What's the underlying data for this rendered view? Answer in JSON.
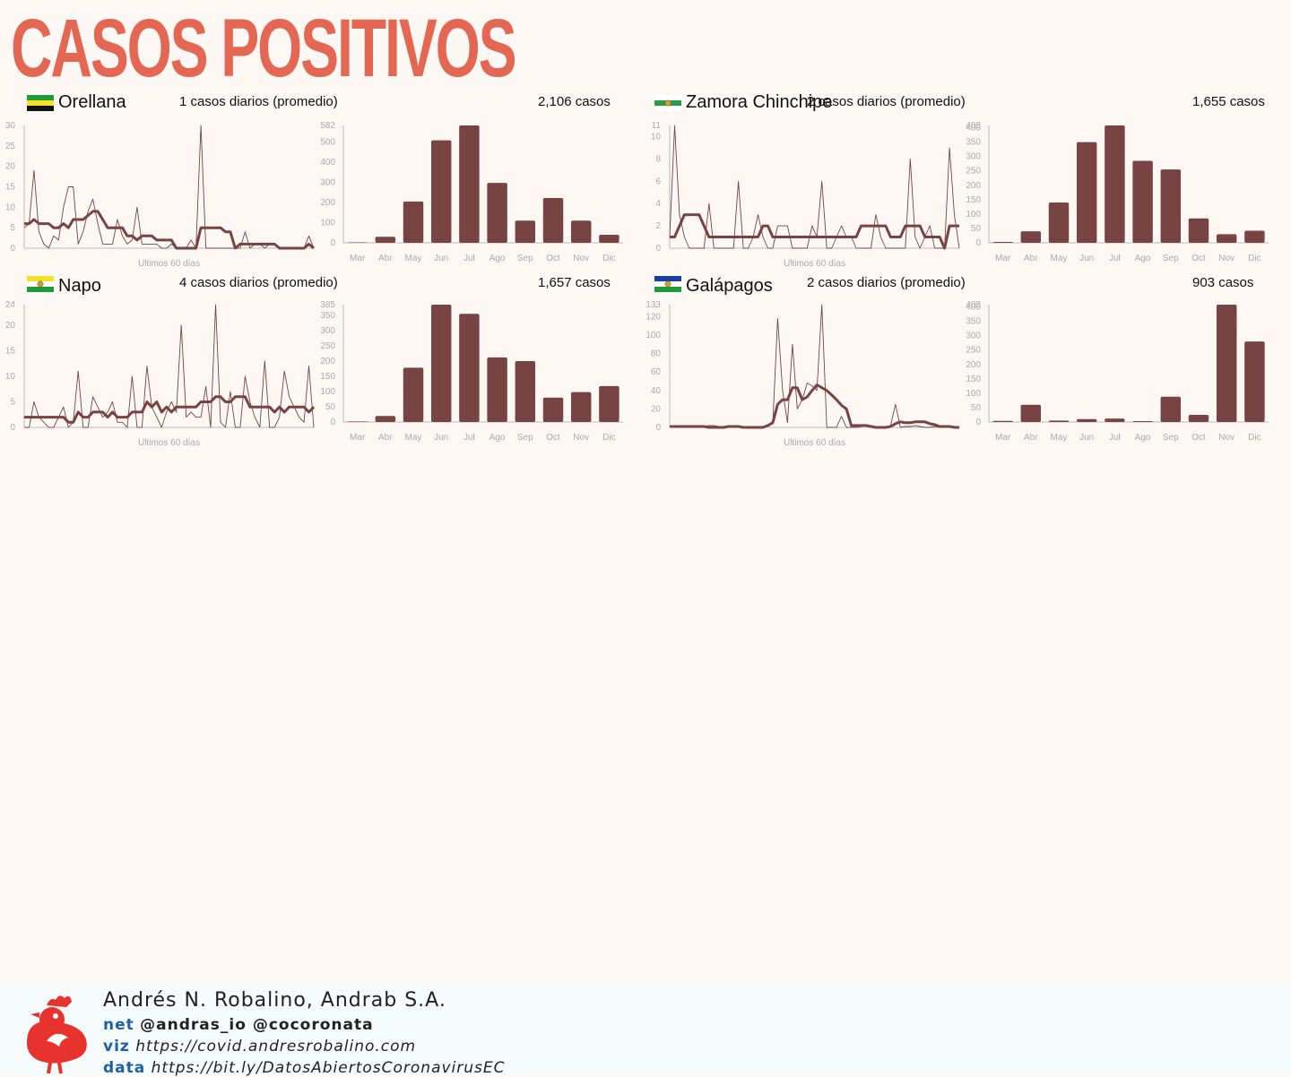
{
  "title": "CASOS POSITIVOS",
  "line_xlabel": "Ultimos 60 días",
  "colors": {
    "bar": "#774443",
    "line": "#774443",
    "title": "#e36752",
    "axis": "#bbbbbb"
  },
  "panels": [
    {
      "name": "Orellana",
      "avg_text": "1 casos diarios (promedio)",
      "total_text": "2,106 casos",
      "flag": {
        "type": "stripes",
        "colors": [
          "#1f9b3a",
          "#f5e12a",
          "#111111"
        ]
      },
      "line_chart": {
        "type": "line",
        "xlabel": "Ultimos 60 días",
        "ylim": [
          0,
          30
        ],
        "yticks": [
          0,
          5,
          10,
          15,
          20,
          25,
          30
        ],
        "series": [
          {
            "values": [
              5,
              6,
              19,
              4,
              1,
              0,
              3,
              2,
              10,
              15,
              15,
              1,
              4,
              9,
              12,
              6,
              1,
              1,
              1,
              7,
              3,
              1,
              2,
              10,
              1,
              1,
              1,
              1,
              0,
              0,
              1,
              0,
              0,
              0,
              2,
              0,
              30,
              0,
              0,
              0,
              0,
              0,
              0,
              0,
              0,
              4,
              0,
              1,
              1,
              0,
              1,
              1,
              0,
              0,
              0,
              0,
              0,
              0,
              3,
              0
            ]
          },
          {
            "values": [
              6,
              6,
              7,
              6,
              6,
              6,
              5,
              5,
              6,
              5,
              7,
              7,
              7,
              8,
              9,
              9,
              7,
              5,
              5,
              5,
              5,
              3,
              3,
              2,
              3,
              3,
              3,
              2,
              2,
              2,
              2,
              0,
              0,
              0,
              0,
              0,
              5,
              5,
              5,
              5,
              5,
              4,
              4,
              0,
              1,
              1,
              1,
              1,
              1,
              1,
              1,
              1,
              0,
              0,
              0,
              0,
              0,
              0,
              1,
              0
            ]
          }
        ]
      },
      "bar_chart": {
        "type": "bar",
        "categories": [
          "Mar",
          "Abr",
          "May",
          "Jun",
          "Jul",
          "Ago",
          "Sep",
          "Oct",
          "Nov",
          "Dic"
        ],
        "values": [
          2,
          30,
          205,
          508,
          582,
          297,
          110,
          222,
          110,
          40
        ],
        "ylim": [
          0,
          582
        ],
        "yticks": [
          0,
          100,
          200,
          300,
          400,
          500,
          582
        ]
      }
    },
    {
      "name": "Zamora Chinchipe",
      "avg_text": "2 casos diarios (promedio)",
      "total_text": "1,655 casos",
      "flag": {
        "type": "stripes-seal",
        "colors": [
          "#ffffff",
          "#2e9a48",
          "#ffffff"
        ]
      },
      "line_chart": {
        "type": "line",
        "xlabel": "Ultimos 60 días",
        "ylim": [
          0,
          11
        ],
        "yticks": [
          0,
          2,
          4,
          6,
          8,
          10,
          11
        ],
        "series": [
          {
            "values": [
              1,
              11,
              3,
              1,
              0,
              0,
              0,
              0,
              4,
              0,
              0,
              0,
              0,
              0,
              6,
              0,
              0,
              1,
              3,
              1,
              0,
              0,
              2,
              2,
              2,
              0,
              0,
              0,
              0,
              2,
              1,
              6,
              0,
              0,
              1,
              2,
              1,
              1,
              0,
              0,
              0,
              0,
              3,
              1,
              0,
              0,
              0,
              0,
              0,
              8,
              1,
              0,
              1,
              2,
              0,
              0,
              0,
              9,
              3,
              0
            ]
          },
          {
            "values": [
              1,
              1,
              2,
              3,
              3,
              3,
              3,
              2,
              1,
              1,
              1,
              1,
              1,
              1,
              1,
              1,
              1,
              1,
              1,
              2,
              2,
              1,
              1,
              1,
              1,
              1,
              1,
              1,
              1,
              1,
              1,
              1,
              1,
              1,
              1,
              1,
              1,
              1,
              1,
              2,
              2,
              2,
              2,
              2,
              2,
              1,
              1,
              1,
              2,
              2,
              2,
              2,
              1,
              1,
              1,
              1,
              0,
              2,
              2,
              2
            ]
          }
        ]
      },
      "bar_chart": {
        "type": "bar",
        "categories": [
          "Mar",
          "Abr",
          "May",
          "Jun",
          "Jul",
          "Ago",
          "Sep",
          "Oct",
          "Nov",
          "Dic"
        ],
        "values": [
          3,
          40,
          140,
          350,
          408,
          285,
          255,
          85,
          30,
          42
        ],
        "ylim": [
          0,
          408
        ],
        "yticks": [
          0,
          50,
          100,
          150,
          200,
          250,
          300,
          350,
          400,
          408
        ]
      }
    },
    {
      "name": "Napo",
      "avg_text": "4 casos diarios (promedio)",
      "total_text": "1,657 casos",
      "flag": {
        "type": "stripes-seal",
        "colors": [
          "#f5e12a",
          "#ffffff",
          "#1f9b3a"
        ]
      },
      "line_chart": {
        "type": "line",
        "xlabel": "Ultimos 60 días",
        "ylim": [
          0,
          24
        ],
        "yticks": [
          0,
          5,
          10,
          15,
          20,
          24
        ],
        "series": [
          {
            "values": [
              0,
              0,
              5,
              2,
              1,
              0,
              0,
              2,
              4,
              0,
              1,
              11,
              0,
              0,
              6,
              4,
              2,
              3,
              5,
              1,
              1,
              0,
              10,
              0,
              0,
              12,
              4,
              2,
              0,
              3,
              5,
              3,
              20,
              2,
              3,
              2,
              2,
              8,
              0,
              24,
              1,
              0,
              7,
              0,
              0,
              10,
              5,
              2,
              0,
              13,
              0,
              0,
              2,
              11,
              6,
              4,
              2,
              1,
              12,
              0
            ]
          },
          {
            "values": [
              2,
              2,
              2,
              2,
              2,
              2,
              2,
              2,
              2,
              1,
              1,
              3,
              2,
              2,
              3,
              3,
              3,
              2,
              3,
              2,
              2,
              2,
              3,
              3,
              3,
              5,
              4,
              5,
              3,
              4,
              3,
              4,
              4,
              4,
              4,
              4,
              5,
              5,
              5,
              6,
              6,
              5,
              5,
              6,
              6,
              6,
              4,
              4,
              4,
              4,
              4,
              3,
              4,
              3,
              4,
              4,
              4,
              4,
              3,
              4
            ]
          }
        ]
      },
      "bar_chart": {
        "type": "bar",
        "categories": [
          "Mar",
          "Abr",
          "May",
          "Jun",
          "Jul",
          "Ago",
          "Sep",
          "Oct",
          "Nov",
          "Dic"
        ],
        "values": [
          2,
          20,
          178,
          385,
          355,
          212,
          200,
          80,
          98,
          118
        ],
        "ylim": [
          0,
          385
        ],
        "yticks": [
          0,
          50,
          100,
          150,
          200,
          250,
          300,
          350,
          385
        ]
      }
    },
    {
      "name": "Galápagos",
      "avg_text": "2 casos diarios (promedio)",
      "total_text": "903 casos",
      "flag": {
        "type": "stripes-seal",
        "colors": [
          "#1b3fa0",
          "#ffffff",
          "#1f9b3a"
        ]
      },
      "line_chart": {
        "type": "line",
        "xlabel": "Ultimos 60 días",
        "ylim": [
          0,
          133
        ],
        "yticks": [
          0,
          20,
          40,
          60,
          80,
          100,
          120,
          133
        ],
        "series": [
          {
            "values": [
              1,
              1,
              1,
              1,
              1,
              1,
              1,
              1,
              2,
              2,
              1,
              1,
              1,
              1,
              1,
              1,
              1,
              1,
              1,
              1,
              1,
              5,
              118,
              40,
              5,
              90,
              20,
              30,
              48,
              45,
              40,
              133,
              0,
              0,
              0,
              12,
              0,
              0,
              0,
              1,
              2,
              0,
              1,
              0,
              0,
              2,
              25,
              0,
              1,
              1,
              2,
              1,
              0,
              0,
              1,
              0,
              0,
              0,
              1,
              1
            ]
          },
          {
            "values": [
              1,
              1,
              1,
              1,
              1,
              1,
              1,
              1,
              0,
              0,
              0,
              0,
              1,
              1,
              1,
              0,
              0,
              0,
              0,
              0,
              2,
              5,
              25,
              30,
              30,
              43,
              43,
              30,
              33,
              40,
              46,
              43,
              40,
              35,
              30,
              24,
              20,
              2,
              2,
              2,
              2,
              1,
              0,
              0,
              0,
              1,
              4,
              6,
              5,
              5,
              6,
              6,
              6,
              4,
              3,
              1,
              1,
              1,
              0,
              0
            ]
          }
        ]
      },
      "bar_chart": {
        "type": "bar",
        "categories": [
          "Mar",
          "Abr",
          "May",
          "Jun",
          "Jul",
          "Ago",
          "Sep",
          "Oct",
          "Nov",
          "Dic"
        ],
        "values": [
          4,
          60,
          5,
          10,
          12,
          3,
          88,
          25,
          408,
          280
        ],
        "ylim": [
          0,
          408
        ],
        "yticks": [
          0,
          50,
          100,
          150,
          200,
          250,
          300,
          350,
          400,
          408
        ]
      }
    }
  ],
  "footer": {
    "author": "Andrés N. Robalino, Andrab S.A.",
    "net_key": "net",
    "net_value": "@andras_io @cocoronata",
    "viz_key": "viz",
    "viz_value": "https://covid.andresrobalino.com",
    "data_key": "data",
    "data_value": "https://bit.ly/DatosAbiertosCoronavirusEC"
  }
}
